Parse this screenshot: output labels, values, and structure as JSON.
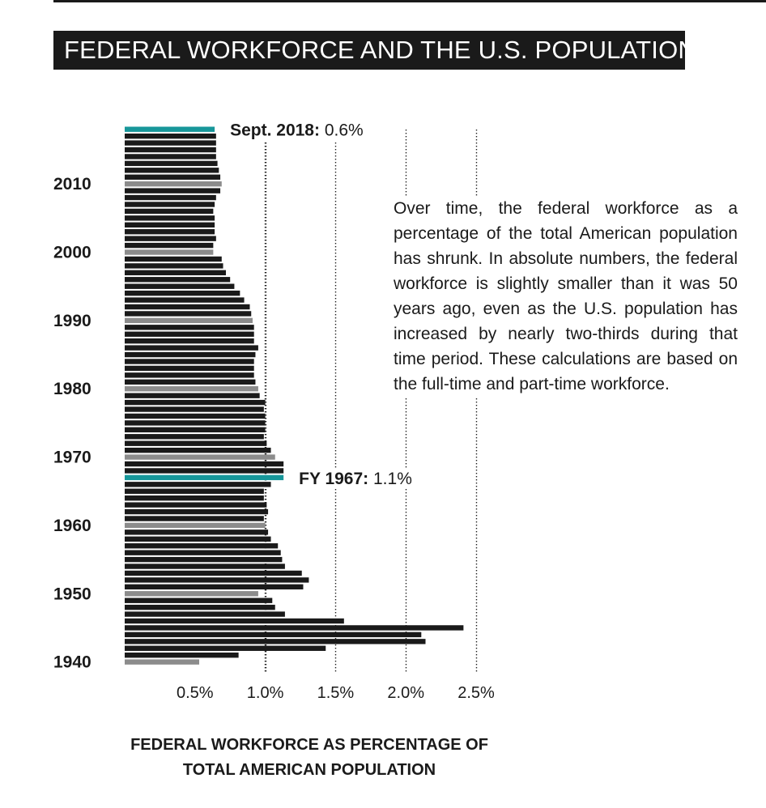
{
  "header": {
    "title": "FEDERAL WORKFORCE AND THE U.S. POPULATION"
  },
  "description": "Over time, the federal workforce as a percentage of the total American population has shrunk. In absolute numbers, the federal workforce is slightly smaller than it was 50 years ago, even as the U.S. population has increased by nearly two-thirds during that time period. These calculations are based on the full-time and part-time workforce.",
  "caption": {
    "line1": "FEDERAL WORKFORCE AS PERCENTAGE OF",
    "line2": "TOTAL AMERICAN POPULATION"
  },
  "colors": {
    "bar": "#1a1a1a",
    "decade_bar": "#8c8c8c",
    "highlight": "#17979a",
    "text": "#1a1a1a"
  },
  "chart_data": {
    "type": "bar",
    "orientation": "horizontal",
    "title": "FEDERAL WORKFORCE AND THE U.S. POPULATION",
    "xlabel": "FEDERAL WORKFORCE AS PERCENTAGE OF TOTAL AMERICAN POPULATION",
    "ylabel": "",
    "xlim": [
      0,
      2.5
    ],
    "x_ticks": [
      0.5,
      1.0,
      1.5,
      2.0,
      2.5
    ],
    "x_tick_labels": [
      "0.5%",
      "1.0%",
      "1.5%",
      "2.0%",
      "2.5%"
    ],
    "y_ticks": [
      1940,
      1950,
      1960,
      1970,
      1980,
      1990,
      2000,
      2010
    ],
    "y_tick_labels": [
      "1940",
      "1950",
      "1960",
      "1970",
      "1980",
      "1990",
      "2000",
      "2010"
    ],
    "grid": "vertical dotted lines",
    "categories": [
      1940,
      1941,
      1942,
      1943,
      1944,
      1945,
      1946,
      1947,
      1948,
      1949,
      1950,
      1951,
      1952,
      1953,
      1954,
      1955,
      1956,
      1957,
      1958,
      1959,
      1960,
      1961,
      1962,
      1963,
      1964,
      1965,
      1966,
      1967,
      1968,
      1969,
      1970,
      1971,
      1972,
      1973,
      1974,
      1975,
      1976,
      1977,
      1978,
      1979,
      1980,
      1981,
      1982,
      1983,
      1984,
      1985,
      1986,
      1987,
      1988,
      1989,
      1990,
      1991,
      1992,
      1993,
      1994,
      1995,
      1996,
      1997,
      1998,
      1999,
      2000,
      2001,
      2002,
      2003,
      2004,
      2005,
      2006,
      2007,
      2008,
      2009,
      2010,
      2011,
      2012,
      2013,
      2014,
      2015,
      2016,
      2017,
      2018
    ],
    "values": [
      0.53,
      0.81,
      1.43,
      2.14,
      2.11,
      2.41,
      1.56,
      1.14,
      1.07,
      1.05,
      0.95,
      1.27,
      1.31,
      1.26,
      1.14,
      1.12,
      1.11,
      1.09,
      1.04,
      1.02,
      1.0,
      0.99,
      1.02,
      1.01,
      0.99,
      0.99,
      1.04,
      1.13,
      1.13,
      1.13,
      1.07,
      1.04,
      1.01,
      0.99,
      1.0,
      1.0,
      1.0,
      0.99,
      1.0,
      0.96,
      0.95,
      0.93,
      0.92,
      0.92,
      0.92,
      0.93,
      0.95,
      0.92,
      0.92,
      0.92,
      0.91,
      0.9,
      0.89,
      0.85,
      0.82,
      0.78,
      0.75,
      0.72,
      0.7,
      0.69,
      0.63,
      0.63,
      0.65,
      0.64,
      0.64,
      0.64,
      0.63,
      0.64,
      0.65,
      0.68,
      0.69,
      0.68,
      0.67,
      0.66,
      0.65,
      0.65,
      0.65,
      0.65,
      0.64
    ],
    "highlights": [
      {
        "year": 1967,
        "label_bold": "FY 1967:",
        "label_value": "1.1%"
      },
      {
        "year": 2018,
        "label_bold": "Sept. 2018:",
        "label_value": "0.6%"
      }
    ]
  }
}
